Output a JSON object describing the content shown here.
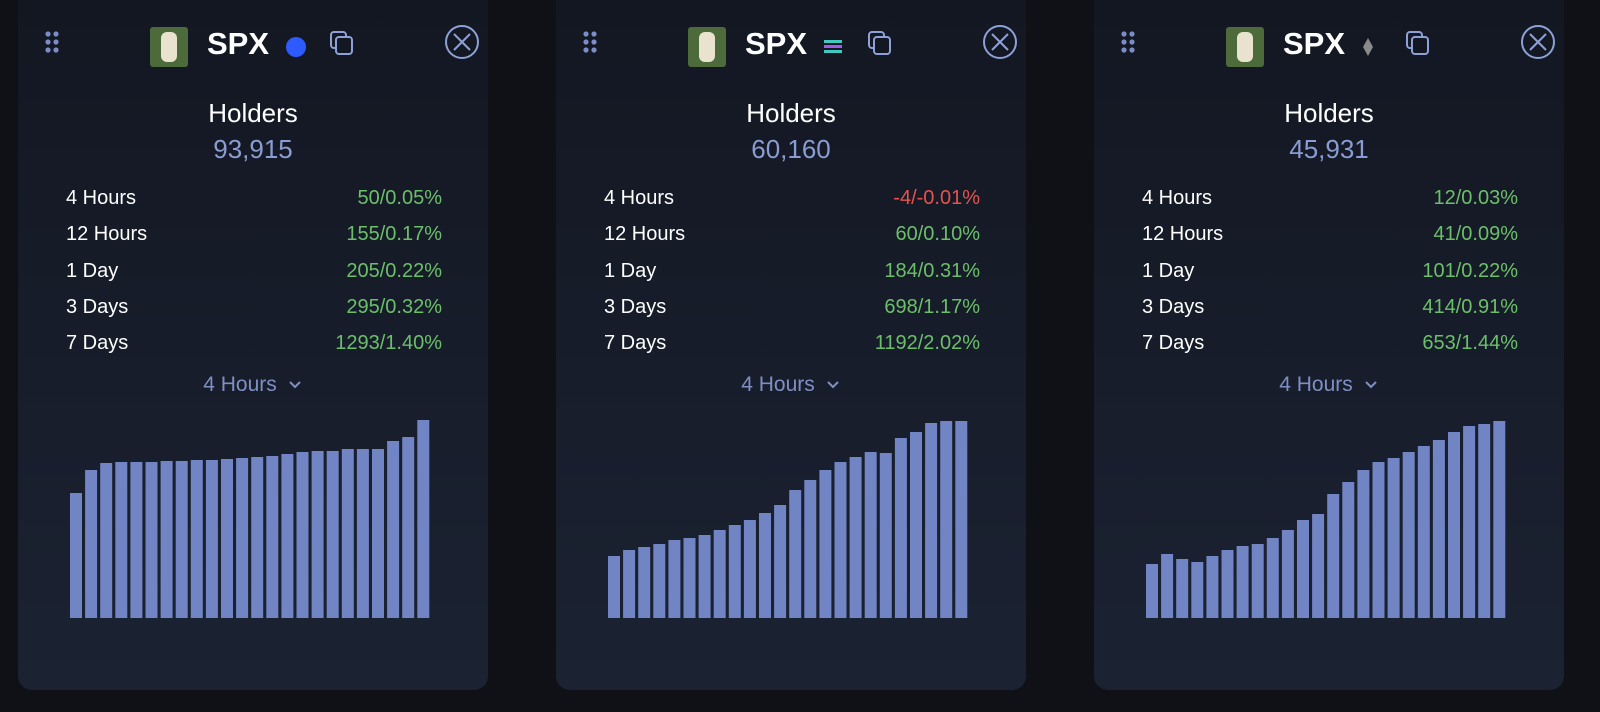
{
  "cards": [
    {
      "token": "SPX",
      "holders_label": "Holders",
      "holders_value": "93,915",
      "rows": [
        {
          "label": "4 Hours",
          "value": "50/0.05%",
          "color": "#6cbf6a"
        },
        {
          "label": "12 Hours",
          "value": "155/0.17%",
          "color": "#6cbf6a"
        },
        {
          "label": "1 Day",
          "value": "205/0.22%",
          "color": "#6cbf6a"
        },
        {
          "label": "3 Days",
          "value": "295/0.32%",
          "color": "#6cbf6a"
        },
        {
          "label": "7 Days",
          "value": "1293/1.40%",
          "color": "#6cbf6a"
        }
      ],
      "period": "4 Hours",
      "chart": {
        "type": "bar",
        "color": "#7185c4",
        "values": [
          125,
          148,
          155,
          156,
          156,
          156,
          157,
          157,
          158,
          158,
          159,
          160,
          161,
          162,
          164,
          166,
          167,
          167,
          169,
          169,
          169,
          177,
          181,
          198
        ]
      }
    },
    {
      "token": "SPX",
      "holders_label": "Holders",
      "holders_value": "60,160",
      "rows": [
        {
          "label": "4 Hours",
          "value": "-4/-0.01%",
          "color": "#e5534b"
        },
        {
          "label": "12 Hours",
          "value": "60/0.10%",
          "color": "#6cbf6a"
        },
        {
          "label": "1 Day",
          "value": "184/0.31%",
          "color": "#6cbf6a"
        },
        {
          "label": "3 Days",
          "value": "698/1.17%",
          "color": "#6cbf6a"
        },
        {
          "label": "7 Days",
          "value": "1192/2.02%",
          "color": "#6cbf6a"
        }
      ],
      "period": "4 Hours",
      "chart": {
        "type": "bar",
        "color": "#7185c4",
        "values": [
          62,
          68,
          71,
          74,
          78,
          80,
          83,
          88,
          93,
          98,
          105,
          113,
          128,
          138,
          148,
          156,
          161,
          166,
          165,
          180,
          186,
          195,
          197,
          197
        ]
      }
    },
    {
      "token": "SPX",
      "holders_label": "Holders",
      "holders_value": "45,931",
      "rows": [
        {
          "label": "4 Hours",
          "value": "12/0.03%",
          "color": "#6cbf6a"
        },
        {
          "label": "12 Hours",
          "value": "41/0.09%",
          "color": "#6cbf6a"
        },
        {
          "label": "1 Day",
          "value": "101/0.22%",
          "color": "#6cbf6a"
        },
        {
          "label": "3 Days",
          "value": "414/0.91%",
          "color": "#6cbf6a"
        },
        {
          "label": "7 Days",
          "value": "653/1.44%",
          "color": "#6cbf6a"
        }
      ],
      "period": "4 Hours",
      "chart": {
        "type": "bar",
        "color": "#7185c4",
        "values": [
          54,
          64,
          59,
          56,
          62,
          68,
          72,
          74,
          80,
          88,
          98,
          104,
          124,
          136,
          148,
          156,
          160,
          166,
          172,
          178,
          186,
          192,
          194,
          197
        ]
      }
    }
  ]
}
